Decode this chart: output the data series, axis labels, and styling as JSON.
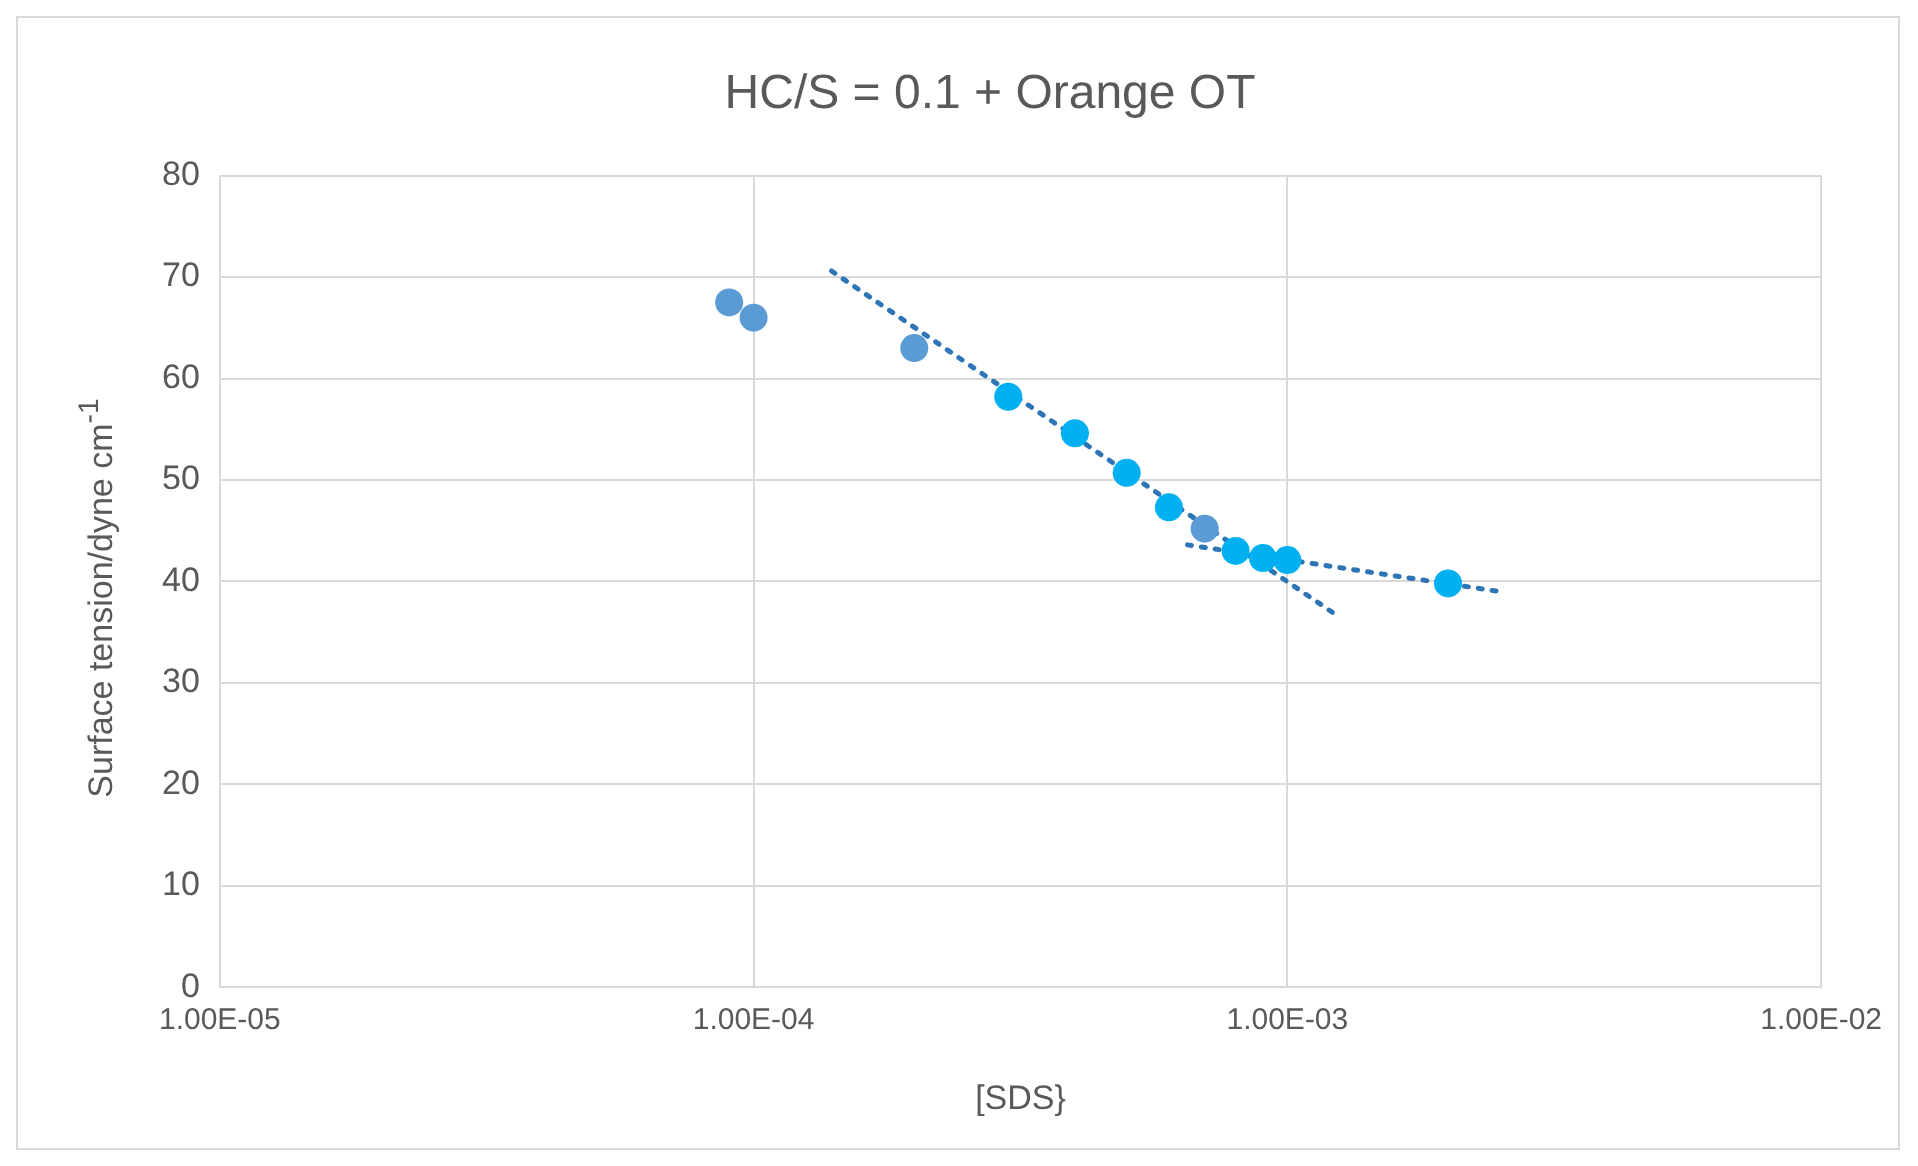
{
  "chart_data": {
    "type": "scatter",
    "title": "HC/S = 0.1 + Orange OT",
    "xlabel": "[SDS}",
    "ylabel": "Surface tension/dyne cm$^{-1}$",
    "log": "x",
    "xlim": [
      1e-05,
      0.01
    ],
    "xticks": [
      {
        "value": 1e-05,
        "label": "1.00E-05"
      },
      {
        "value": 0.0001,
        "label": "1.00E-04"
      },
      {
        "value": 0.001,
        "label": "1.00E-03"
      },
      {
        "value": 0.01,
        "label": "1.00E-02"
      }
    ],
    "ylim": [
      0,
      80
    ],
    "yticks": [
      0,
      10,
      20,
      30,
      40,
      50,
      60,
      70,
      80
    ],
    "grid": true,
    "marker": "circle",
    "series": [
      {
        "color": "#5b9bd5",
        "x": [
          9e-05,
          0.0001,
          0.0002,
          0.0007
        ],
        "values": [
          67.5,
          66,
          63,
          45.2
        ]
      },
      {
        "color": "#00b0f0",
        "x": [
          0.0003,
          0.0004,
          0.0005,
          0.0006,
          0.0008,
          0.0009,
          0.001,
          0.002
        ],
        "values": [
          58.2,
          54.6,
          50.7,
          47.3,
          43,
          42.3,
          42.1,
          39.8
        ]
      },
      {
        "type": "line",
        "color": "#2e75b6",
        "line_style": "dotted",
        "marker": "none",
        "x": [
          0.00014,
          0.00125
        ],
        "values": [
          70.6,
          36.5
        ]
      },
      {
        "type": "line",
        "color": "#2e75b6",
        "line_style": "dotted",
        "marker": "none",
        "x": [
          0.00065,
          0.0025
        ],
        "values": [
          43.6,
          39
        ]
      }
    ]
  }
}
